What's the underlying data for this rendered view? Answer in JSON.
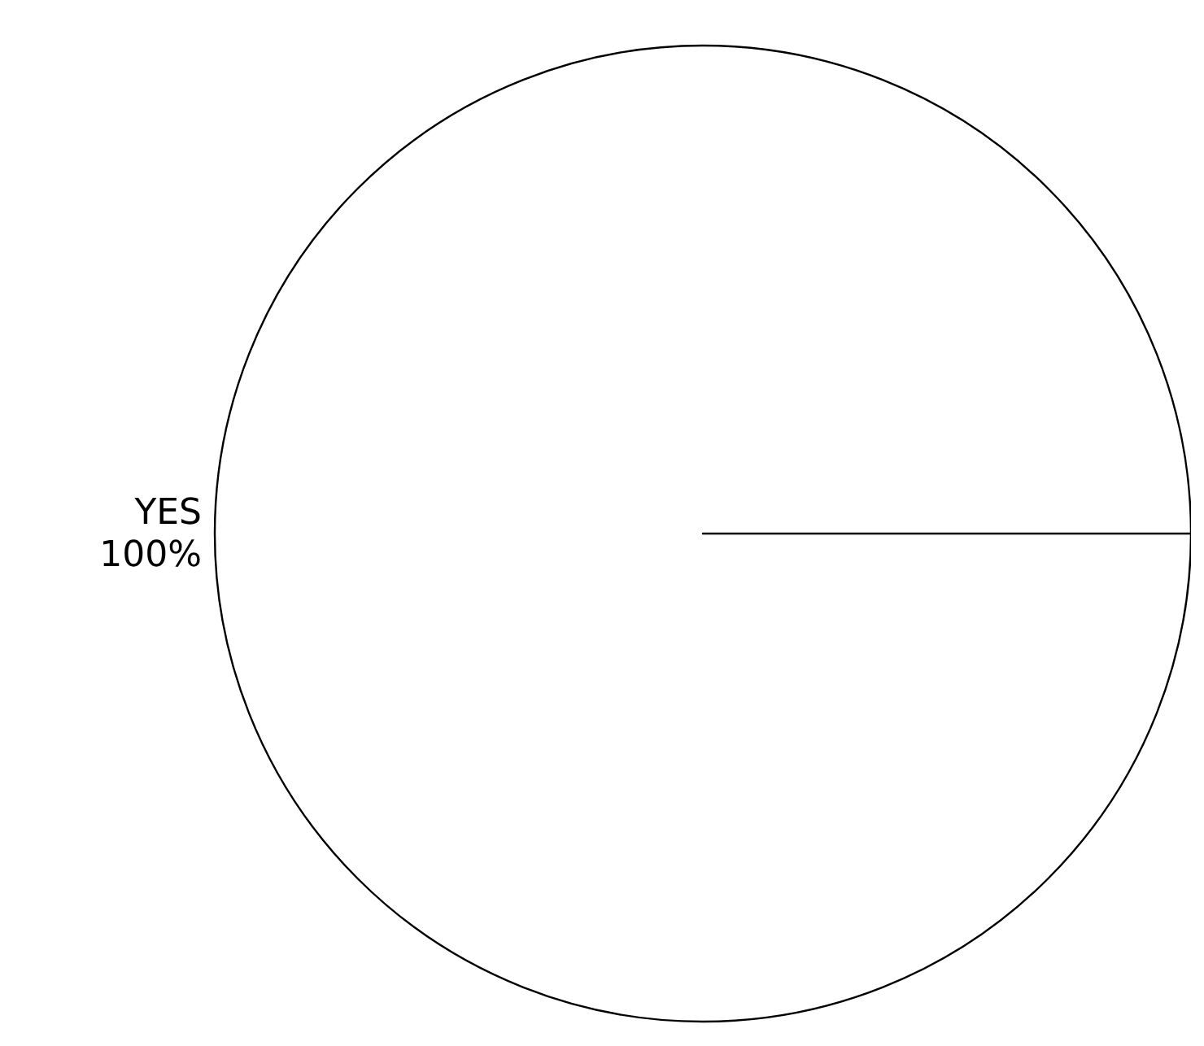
{
  "chart_data": {
    "type": "pie",
    "categories": [
      "YES"
    ],
    "values": [
      100
    ],
    "colors": [
      "#ffffff"
    ],
    "value_labels": [
      "100%"
    ]
  }
}
